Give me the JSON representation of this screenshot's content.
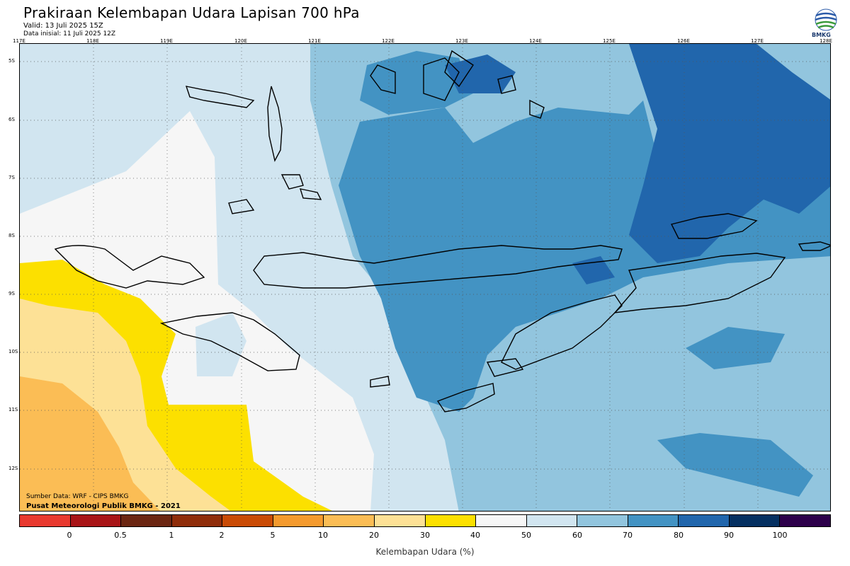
{
  "header": {
    "title": "Prakiraan Kelembapan Udara Lapisan 700 hPa",
    "valid": "Valid: 13 Juli 2025 15Z",
    "initial": "Data inisial: 11 Juli 2025 12Z"
  },
  "logo": {
    "text": "BMKG",
    "icon": "bmkg-logo-icon"
  },
  "axes": {
    "longitudes": [
      "117E",
      "118E",
      "119E",
      "120E",
      "121E",
      "122E",
      "123E",
      "124E",
      "125E",
      "126E",
      "127E",
      "128E"
    ],
    "latitudes": [
      "5S",
      "6S",
      "7S",
      "8S",
      "9S",
      "10S",
      "11S",
      "12S"
    ]
  },
  "credits": {
    "source": "Sumber Data: WRF - CIPS BMKG",
    "publisher": "Pusat Meteorologi Publik BMKG - 2021"
  },
  "colorbar": {
    "colors": [
      "#e8392f",
      "#a81417",
      "#6b2612",
      "#8f2d0a",
      "#c94b06",
      "#f49a2e",
      "#fbbd55",
      "#fde196",
      "#fce000",
      "#f6f6f6",
      "#d1e5f0",
      "#92c5de",
      "#4393c3",
      "#2166ac",
      "#053061",
      "#2d004b"
    ],
    "labels": [
      "0",
      "0.5",
      "1",
      "2",
      "5",
      "10",
      "20",
      "30",
      "40",
      "50",
      "60",
      "70",
      "80",
      "90",
      "100"
    ],
    "title": "Kelembapan Udara (%)"
  }
}
